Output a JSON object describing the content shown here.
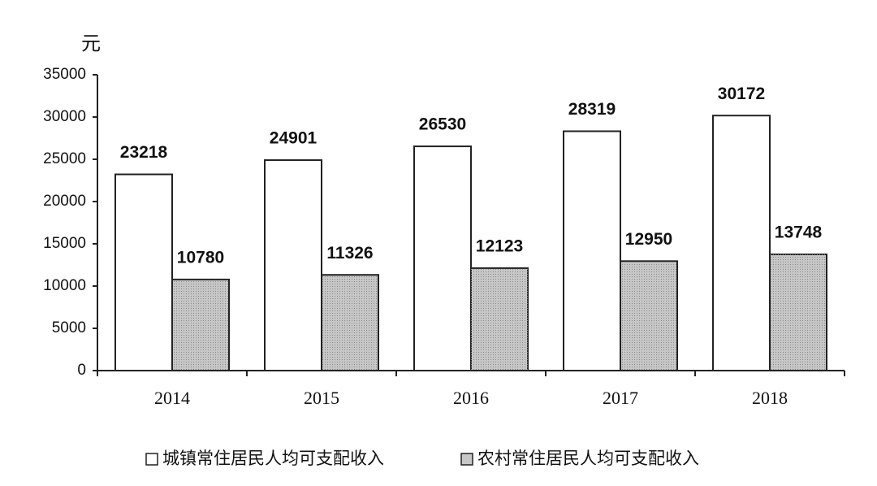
{
  "chart_data": {
    "type": "bar",
    "y_label": "元",
    "categories": [
      "2014",
      "2015",
      "2016",
      "2017",
      "2018"
    ],
    "series": [
      {
        "name": "城镇常住居民人均可支配收入",
        "color": "#ffffff",
        "values": [
          23218,
          24901,
          26530,
          28319,
          30172
        ]
      },
      {
        "name": "农村常住居民人均可支配收入",
        "color": "#c8c8c8",
        "values": [
          10780,
          11326,
          12123,
          12950,
          13748
        ]
      }
    ],
    "ylim": [
      0,
      35000
    ],
    "yticks": [
      0,
      5000,
      10000,
      15000,
      20000,
      25000,
      30000,
      35000
    ],
    "legend": "bottom",
    "grid": false
  }
}
